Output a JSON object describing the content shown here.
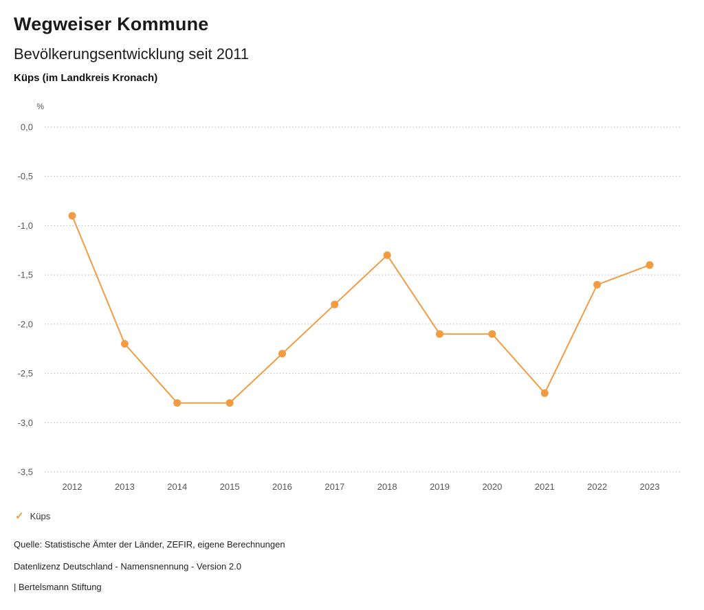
{
  "header": {
    "title": "Wegweiser Kommune",
    "subtitle": "Bevölkerungsentwicklung seit 2011",
    "location": "Küps (im Landkreis Kronach)"
  },
  "legend": {
    "items": [
      {
        "label": "Küps",
        "symbol": "check",
        "symbol_glyph": "✓",
        "color": "#F29B40"
      }
    ]
  },
  "footer": {
    "source": "Quelle: Statistische Ämter der Länder, ZEFIR, eigene Berechnungen",
    "license": "Datenlizenz Deutschland - Namensnennung - Version 2.0",
    "attribution": "| Bertelsmann Stiftung"
  },
  "chart_data": {
    "type": "line",
    "title": "Bevölkerungsentwicklung seit 2011",
    "unit_label": "%",
    "xlabel": "",
    "ylabel": "%",
    "categories": [
      "2012",
      "2013",
      "2014",
      "2015",
      "2016",
      "2017",
      "2018",
      "2019",
      "2020",
      "2021",
      "2022",
      "2023"
    ],
    "series": [
      {
        "name": "Küps",
        "color": "#F29B40",
        "values": [
          -0.9,
          -2.2,
          -2.8,
          -2.8,
          -2.3,
          -1.8,
          -1.3,
          -2.1,
          -2.1,
          -2.7,
          -1.6,
          -1.4
        ]
      }
    ],
    "ylim": [
      -3.5,
      0.0
    ],
    "ytick_step": 0.5,
    "ytick_labels": [
      "0,0",
      "-0,5",
      "-1,0",
      "-1,5",
      "-2,0",
      "-2,5",
      "-3,0",
      "-3,5"
    ],
    "grid": "dotted-horizontal",
    "legend_position": "bottom-left",
    "marker": "circle"
  }
}
